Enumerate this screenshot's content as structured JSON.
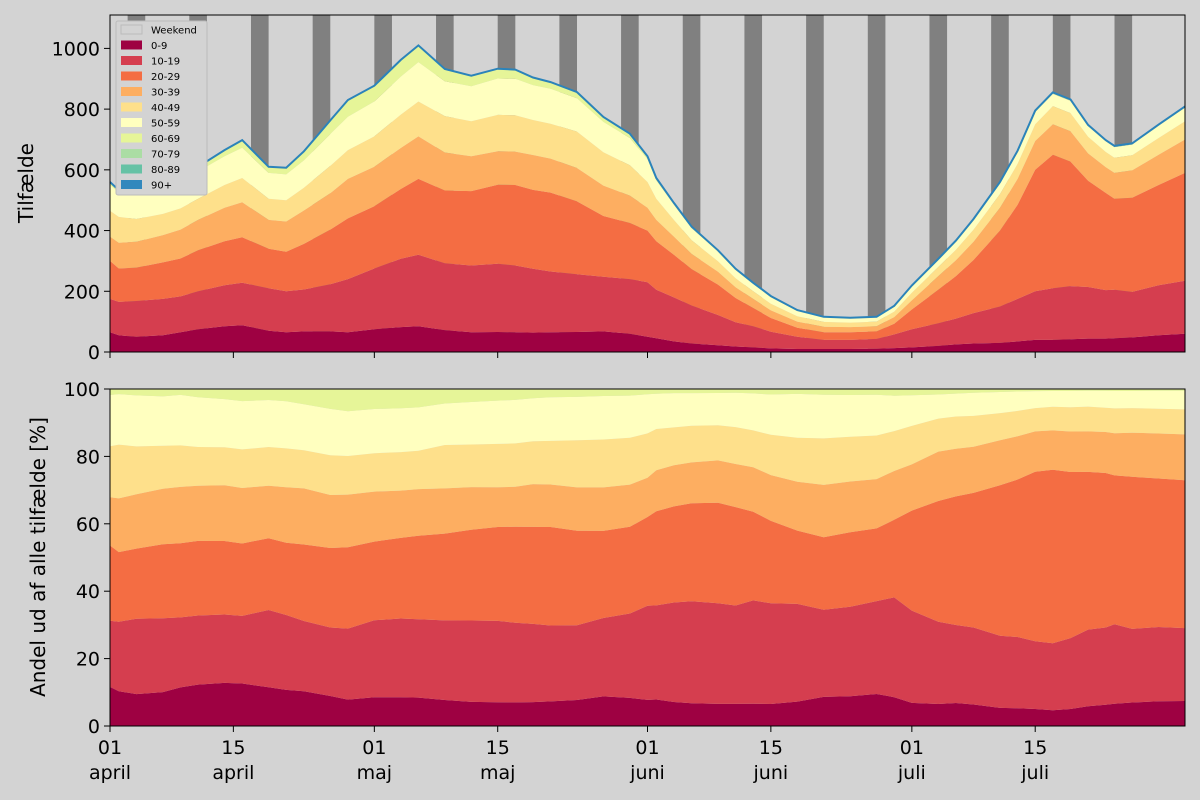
{
  "chart_data": [
    {
      "type": "area",
      "stacked": true,
      "ylabel": "Tilfælde",
      "ylim": [
        0,
        1110
      ],
      "yticks": [
        0,
        200,
        400,
        600,
        800,
        1000
      ],
      "x_start": "2021-04-01",
      "x_end": "2021-08-01",
      "x": [
        0,
        1,
        3,
        6,
        8,
        10,
        13,
        15,
        18,
        20,
        22,
        25,
        27,
        30,
        33,
        35,
        38,
        41,
        44,
        46,
        48,
        50,
        53,
        56,
        59,
        61,
        62,
        64,
        66,
        69,
        71,
        73,
        75,
        78,
        81,
        84,
        87,
        89,
        91,
        94,
        96,
        98,
        101,
        103,
        105,
        107,
        109,
        111,
        113,
        114,
        116,
        119,
        122
      ],
      "weekend_label": "Weekend",
      "weekend_spans": [
        [
          2,
          4
        ],
        [
          9,
          11
        ],
        [
          16,
          18
        ],
        [
          23,
          25
        ],
        [
          30,
          32
        ],
        [
          37,
          39
        ],
        [
          44,
          46
        ],
        [
          51,
          53
        ],
        [
          58,
          60
        ],
        [
          65,
          67
        ],
        [
          72,
          74
        ],
        [
          79,
          81
        ],
        [
          86,
          88
        ],
        [
          93,
          95
        ],
        [
          100,
          102
        ],
        [
          107,
          109
        ],
        [
          114,
          116
        ]
      ],
      "total_line_color": "#2b83ba",
      "series": [
        {
          "name": "0-9",
          "color": "#9e0142",
          "values": [
            65,
            55,
            50,
            55,
            65,
            75,
            85,
            88,
            70,
            65,
            68,
            68,
            65,
            75,
            82,
            85,
            72,
            65,
            66,
            65,
            64,
            65,
            66,
            68,
            60,
            50,
            45,
            35,
            28,
            22,
            18,
            15,
            12,
            10,
            10,
            10,
            11,
            13,
            15,
            20,
            25,
            28,
            30,
            35,
            40,
            40,
            42,
            44,
            44,
            45,
            48,
            55,
            60
          ]
        },
        {
          "name": "10-19",
          "color": "#d53e4f",
          "values": [
            110,
            110,
            118,
            120,
            118,
            125,
            135,
            140,
            140,
            135,
            138,
            155,
            175,
            200,
            225,
            235,
            220,
            220,
            225,
            220,
            210,
            200,
            190,
            180,
            180,
            180,
            160,
            145,
            125,
            100,
            80,
            70,
            55,
            40,
            30,
            30,
            32,
            45,
            60,
            75,
            85,
            100,
            120,
            140,
            160,
            170,
            175,
            170,
            160,
            160,
            150,
            165,
            175
          ]
        },
        {
          "name": "20-29",
          "color": "#f46d43",
          "values": [
            125,
            110,
            110,
            120,
            125,
            135,
            145,
            150,
            130,
            130,
            150,
            180,
            200,
            205,
            230,
            250,
            240,
            245,
            260,
            265,
            260,
            260,
            240,
            200,
            185,
            170,
            160,
            140,
            120,
            100,
            80,
            60,
            45,
            30,
            25,
            25,
            25,
            35,
            65,
            110,
            140,
            175,
            250,
            310,
            400,
            440,
            410,
            350,
            320,
            300,
            310,
            330,
            355
          ]
        },
        {
          "name": "30-39",
          "color": "#fdae61",
          "values": [
            80,
            85,
            85,
            90,
            95,
            100,
            110,
            115,
            95,
            100,
            110,
            120,
            130,
            130,
            135,
            140,
            125,
            115,
            110,
            110,
            115,
            112,
            110,
            100,
            90,
            75,
            70,
            60,
            50,
            42,
            35,
            30,
            25,
            20,
            18,
            17,
            17,
            22,
            30,
            45,
            52,
            60,
            75,
            85,
            95,
            100,
            100,
            90,
            85,
            85,
            90,
            100,
            110
          ]
        },
        {
          "name": "40-49",
          "color": "#fee08b",
          "values": [
            85,
            85,
            75,
            70,
            70,
            70,
            75,
            80,
            70,
            70,
            75,
            90,
            95,
            100,
            110,
            115,
            120,
            115,
            120,
            120,
            115,
            115,
            120,
            110,
            100,
            85,
            70,
            55,
            45,
            35,
            30,
            25,
            22,
            18,
            16,
            15,
            15,
            18,
            25,
            30,
            35,
            40,
            45,
            50,
            55,
            60,
            60,
            55,
            50,
            50,
            50,
            55,
            60
          ]
        },
        {
          "name": "50-59",
          "color": "#ffffbf",
          "values": [
            85,
            80,
            80,
            80,
            85,
            90,
            95,
            100,
            85,
            85,
            90,
            105,
            110,
            115,
            125,
            130,
            115,
            115,
            120,
            120,
            115,
            115,
            110,
            100,
            90,
            75,
            60,
            50,
            40,
            32,
            28,
            25,
            22,
            18,
            15,
            14,
            14,
            16,
            20,
            22,
            25,
            30,
            35,
            38,
            40,
            40,
            40,
            35,
            35,
            35,
            35,
            40,
            45
          ]
        },
        {
          "name": "60-69",
          "color": "#e6f598",
          "values": [
            10,
            8,
            10,
            12,
            10,
            15,
            20,
            25,
            20,
            22,
            30,
            45,
            55,
            52,
            55,
            55,
            40,
            35,
            32,
            30,
            25,
            22,
            20,
            16,
            14,
            10,
            8,
            6,
            5,
            4,
            3,
            3,
            3,
            2,
            2,
            2,
            2,
            3,
            4,
            5,
            5,
            5,
            5,
            5,
            5,
            5,
            5,
            4,
            4,
            4,
            4,
            4,
            4
          ]
        },
        {
          "name": "70-79",
          "color": "#abdda4",
          "values": [
            0,
            0,
            0,
            0,
            0,
            0,
            0,
            0,
            0,
            0,
            0,
            0,
            0,
            0,
            0,
            0,
            0,
            0,
            0,
            0,
            0,
            0,
            0,
            0,
            0,
            0,
            0,
            0,
            0,
            0,
            0,
            0,
            0,
            0,
            0,
            0,
            0,
            0,
            0,
            0,
            0,
            0,
            0,
            0,
            0,
            0,
            0,
            0,
            0,
            0,
            0,
            0,
            0
          ]
        },
        {
          "name": "80-89",
          "color": "#66c2a5",
          "values": [
            0,
            0,
            0,
            0,
            0,
            0,
            0,
            0,
            0,
            0,
            0,
            0,
            0,
            0,
            0,
            0,
            0,
            0,
            0,
            0,
            0,
            0,
            0,
            0,
            0,
            0,
            0,
            0,
            0,
            0,
            0,
            0,
            0,
            0,
            0,
            0,
            0,
            0,
            0,
            0,
            0,
            0,
            0,
            0,
            0,
            0,
            0,
            0,
            0,
            0,
            0,
            0,
            0
          ]
        },
        {
          "name": "90+",
          "color": "#3288bd",
          "values": [
            0,
            0,
            0,
            0,
            0,
            0,
            0,
            0,
            0,
            0,
            0,
            0,
            0,
            0,
            0,
            0,
            0,
            0,
            0,
            0,
            0,
            0,
            0,
            0,
            0,
            0,
            0,
            0,
            0,
            0,
            0,
            0,
            0,
            0,
            0,
            0,
            0,
            0,
            0,
            0,
            0,
            0,
            0,
            0,
            0,
            0,
            0,
            0,
            0,
            0,
            0,
            0,
            0
          ]
        }
      ]
    },
    {
      "type": "area",
      "stacked": true,
      "percent": true,
      "ylabel": "Andel ud af alle tilfælde [%]",
      "ylim": [
        0,
        100
      ],
      "yticks": [
        0,
        20,
        40,
        60,
        80,
        100
      ]
    }
  ],
  "x_ticks": [
    {
      "day": 0,
      "line1": "01",
      "line2": "april"
    },
    {
      "day": 14,
      "line1": "15",
      "line2": "april"
    },
    {
      "day": 30,
      "line1": "01",
      "line2": "maj"
    },
    {
      "day": 44,
      "line1": "15",
      "line2": "maj"
    },
    {
      "day": 61,
      "line1": "01",
      "line2": "juni"
    },
    {
      "day": 75,
      "line1": "15",
      "line2": "juni"
    },
    {
      "day": 91,
      "line1": "01",
      "line2": "juli"
    },
    {
      "day": 105,
      "line1": "15",
      "line2": "juli"
    }
  ]
}
